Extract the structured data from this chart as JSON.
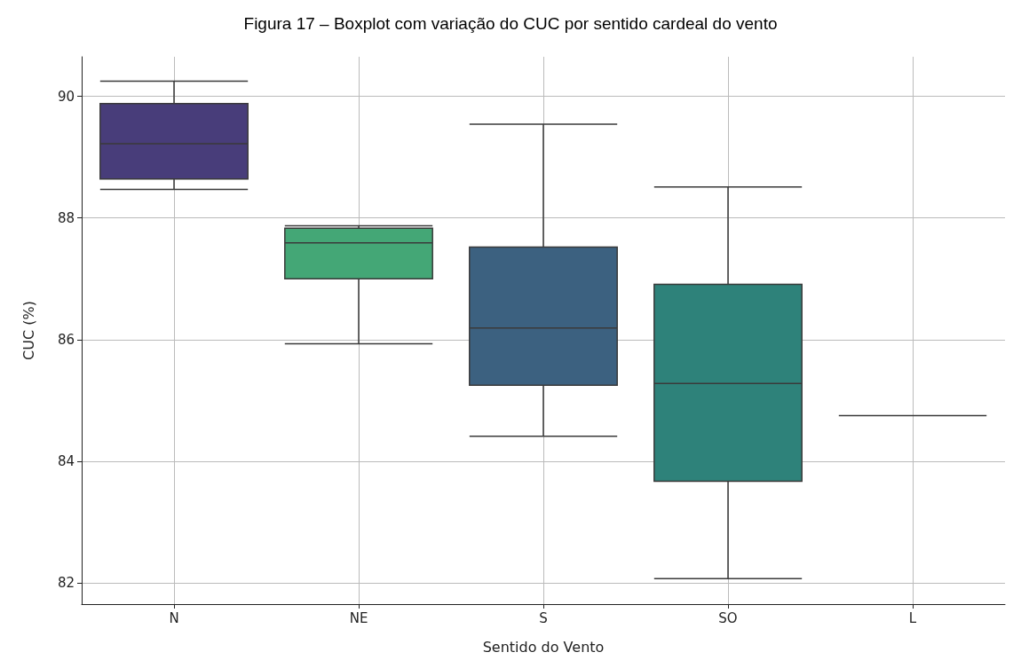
{
  "chart_data": {
    "type": "box",
    "title": "Figura 17 – Boxplot com variação do CUC por sentido cardeal do vento",
    "xlabel": "Sentido do Vento",
    "ylabel": "CUC (%)",
    "categories": [
      "N",
      "NE",
      "S",
      "SO",
      "L"
    ],
    "colors": [
      "#483d7a",
      "#44a776",
      "#3c6180",
      "#2e827a",
      "#3a3a3a"
    ],
    "boxes": [
      {
        "low": 88.47,
        "q1": 88.64,
        "median": 89.22,
        "q3": 89.88,
        "high": 90.25
      },
      {
        "low": 85.93,
        "q1": 87.0,
        "median": 87.59,
        "q3": 87.83,
        "high": 87.87
      },
      {
        "low": 84.41,
        "q1": 85.25,
        "median": 86.19,
        "q3": 87.52,
        "high": 89.54
      },
      {
        "low": 82.07,
        "q1": 83.67,
        "median": 85.28,
        "q3": 86.91,
        "high": 88.51
      },
      {
        "low": 84.75,
        "q1": 84.75,
        "median": 84.75,
        "q3": 84.75,
        "high": 84.75
      }
    ],
    "ylim": [
      81.65,
      90.65
    ],
    "yticks": [
      82,
      84,
      86,
      88,
      90
    ],
    "grid": true
  }
}
